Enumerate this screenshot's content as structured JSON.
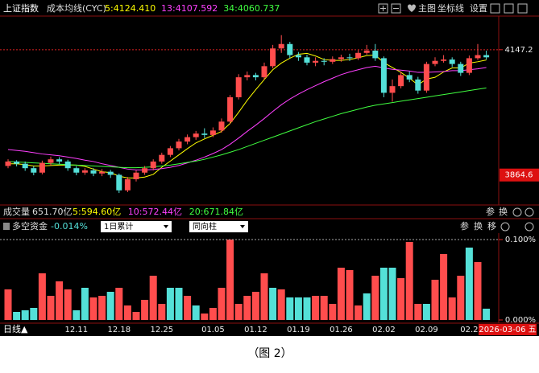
{
  "toolbar": {
    "symbol": "上证指数",
    "indicator": "成本均线(CYC)",
    "buttons": [
      "主图",
      "坐标线",
      "设置"
    ]
  },
  "volume": {
    "title": "成交量",
    "value": "651.70亿",
    "legend": [
      {
        "text": "5:594.60亿",
        "color": "#ffff00"
      },
      {
        "text": "10:572.44亿",
        "color": "#ff40ff"
      },
      {
        "text": "20:671.84亿",
        "color": "#40ff40"
      }
    ]
  },
  "panel_buttons": [
    "参",
    "换",
    "移"
  ],
  "controls": {
    "period": "1日累计",
    "style": "同向柱"
  },
  "footer": {
    "period": "日线▲",
    "date": "2026-03-06 五"
  },
  "caption": "（图 2）",
  "chart_data": [
    {
      "type": "candlestick",
      "up_color": "#ff4d4d",
      "down_color": "#54e0d8",
      "ylim": [
        3797,
        4223
      ],
      "yticks": [
        4147.2,
        3864.6
      ],
      "open": [
        3885,
        3895,
        3890,
        3880,
        3870,
        3892,
        3900,
        3895,
        3880,
        3870,
        3875,
        3868,
        3872,
        3865,
        3830,
        3855,
        3870,
        3880,
        3895,
        3910,
        3925,
        3940,
        3950,
        3958,
        3955,
        3965,
        3985,
        4040,
        4085,
        4090,
        4085,
        4110,
        4150,
        4160,
        4135,
        4130,
        4118,
        4122,
        4120,
        4126,
        4130,
        4128,
        4140,
        4145,
        4128,
        4050,
        4065,
        4090,
        4080,
        4055,
        4115,
        4122,
        4125,
        4115,
        4095,
        4128,
        4135
      ],
      "high": [
        3900,
        3898,
        3895,
        3885,
        3897,
        3906,
        3905,
        3899,
        3885,
        3880,
        3880,
        3878,
        3876,
        3868,
        3860,
        3875,
        3885,
        3900,
        3915,
        3930,
        3946,
        3956,
        3964,
        3970,
        3972,
        3992,
        4045,
        4092,
        4098,
        4095,
        4118,
        4158,
        4180,
        4165,
        4142,
        4136,
        4130,
        4128,
        4132,
        4136,
        4138,
        4146,
        4158,
        4160,
        4132,
        4080,
        4098,
        4098,
        4086,
        4120,
        4130,
        4135,
        4130,
        4120,
        4134,
        4160,
        4145
      ],
      "low": [
        3880,
        3884,
        3874,
        3864,
        3866,
        3886,
        3889,
        3874,
        3864,
        3865,
        3862,
        3862,
        3858,
        3824,
        3826,
        3850,
        3865,
        3875,
        3890,
        3905,
        3920,
        3934,
        3944,
        3948,
        3950,
        3960,
        3980,
        4035,
        4078,
        4078,
        4080,
        4105,
        4140,
        4128,
        4122,
        4112,
        4110,
        4112,
        4115,
        4120,
        4122,
        4124,
        4136,
        4122,
        4040,
        4030,
        4060,
        4074,
        4048,
        4050,
        4110,
        4118,
        4108,
        4088,
        4090,
        4124,
        4125
      ],
      "close": [
        3895,
        3890,
        3880,
        3870,
        3892,
        3900,
        3895,
        3880,
        3870,
        3875,
        3868,
        3872,
        3865,
        3830,
        3855,
        3870,
        3880,
        3895,
        3910,
        3925,
        3940,
        3950,
        3958,
        3955,
        3965,
        3985,
        4040,
        4085,
        4090,
        4085,
        4110,
        4150,
        4160,
        4135,
        4130,
        4118,
        4122,
        4120,
        4126,
        4130,
        4128,
        4140,
        4145,
        4128,
        4050,
        4065,
        4090,
        4080,
        4055,
        4115,
        4122,
        4125,
        4115,
        4095,
        4128,
        4135,
        4130
      ],
      "series": [
        {
          "name": "5:4124.410",
          "color": "#ffff00",
          "values": [
            3890,
            3890,
            3888,
            3885,
            3885,
            3886,
            3887,
            3887,
            3887,
            3884,
            3878,
            3872,
            3870,
            3862,
            3858,
            3858,
            3860,
            3866,
            3882,
            3896,
            3910,
            3924,
            3937,
            3946,
            3954,
            3963,
            3981,
            4006,
            4033,
            4057,
            4080,
            4102,
            4117,
            4128,
            4137,
            4139,
            4133,
            4125,
            4123,
            4123,
            4125,
            4129,
            4134,
            4135,
            4118,
            4107,
            4096,
            4083,
            4068,
            4081,
            4085,
            4097,
            4106,
            4106,
            4117,
            4120,
            4124
          ]
        },
        {
          "name": "13:4107.592",
          "color": "#ff40ff",
          "values": [
            3922,
            3920,
            3918,
            3915,
            3912,
            3910,
            3908,
            3905,
            3902,
            3898,
            3895,
            3890,
            3886,
            3882,
            3878,
            3876,
            3876,
            3877,
            3879,
            3882,
            3886,
            3892,
            3898,
            3905,
            3913,
            3922,
            3934,
            3948,
            3963,
            3977,
            3992,
            4008,
            4023,
            4036,
            4047,
            4057,
            4066,
            4075,
            4083,
            4091,
            4097,
            4102,
            4107,
            4110,
            4106,
            4103,
            4101,
            4099,
            4096,
            4096,
            4097,
            4098,
            4100,
            4100,
            4102,
            4104,
            4107
          ]
        },
        {
          "name": "34:4060.737",
          "color": "#40ff40",
          "values": [
            3895,
            3894,
            3893,
            3892,
            3891,
            3890,
            3889,
            3888,
            3887,
            3886,
            3885,
            3884,
            3883,
            3882,
            3881,
            3881,
            3882,
            3883,
            3885,
            3887,
            3890,
            3893,
            3896,
            3900,
            3905,
            3910,
            3916,
            3922,
            3929,
            3936,
            3943,
            3950,
            3957,
            3964,
            3971,
            3978,
            3985,
            3991,
            3997,
            4003,
            4008,
            4013,
            4018,
            4022,
            4025,
            4028,
            4031,
            4034,
            4037,
            4040,
            4043,
            4046,
            4049,
            4052,
            4055,
            4058,
            4061
          ]
        }
      ]
    },
    {
      "type": "bar",
      "title": "多空资金",
      "subtitle": "-0.014%",
      "categories": [
        null,
        null,
        null,
        null,
        null,
        null,
        null,
        null,
        "12.11",
        null,
        null,
        null,
        null,
        "12.18",
        null,
        null,
        null,
        null,
        "12.25",
        null,
        null,
        null,
        null,
        null,
        "01.05",
        null,
        null,
        null,
        null,
        "01.12",
        null,
        null,
        null,
        null,
        "01.19",
        null,
        null,
        null,
        null,
        "01.26",
        null,
        null,
        null,
        null,
        "02.02",
        null,
        null,
        null,
        null,
        "02.09",
        null,
        null,
        null,
        null,
        "02.2",
        null,
        null
      ],
      "values": [
        0.038,
        0.01,
        0.012,
        0.015,
        0.058,
        0.03,
        0.048,
        0.038,
        0.012,
        0.04,
        0.028,
        0.03,
        0.035,
        0.04,
        0.018,
        0.01,
        0.025,
        0.055,
        0.02,
        0.04,
        0.04,
        0.03,
        0.018,
        0.008,
        0.015,
        0.04,
        0.1,
        0.02,
        0.03,
        0.035,
        0.058,
        0.04,
        0.038,
        0.028,
        0.028,
        0.028,
        0.03,
        0.03,
        0.02,
        0.065,
        0.062,
        0.018,
        0.033,
        0.055,
        0.065,
        0.065,
        0.052,
        0.097,
        0.02,
        0.02,
        0.05,
        0.082,
        0.028,
        0.055,
        0.09,
        0.072,
        0.014
      ],
      "colors": [
        "#ff4d4d",
        "#54e0d8",
        "#54e0d8",
        "#54e0d8",
        "#ff4d4d",
        "#ff4d4d",
        "#ff4d4d",
        "#ff4d4d",
        "#54e0d8",
        "#54e0d8",
        "#ff4d4d",
        "#ff4d4d",
        "#54e0d8",
        "#ff4d4d",
        "#ff4d4d",
        "#ff4d4d",
        "#ff4d4d",
        "#ff4d4d",
        "#ff4d4d",
        "#54e0d8",
        "#54e0d8",
        "#ff4d4d",
        "#54e0d8",
        "#ff4d4d",
        "#ff4d4d",
        "#ff4d4d",
        "#ff4d4d",
        "#ff4d4d",
        "#ff4d4d",
        "#ff4d4d",
        "#ff4d4d",
        "#54e0d8",
        "#ff4d4d",
        "#54e0d8",
        "#54e0d8",
        "#54e0d8",
        "#ff4d4d",
        "#ff4d4d",
        "#ff4d4d",
        "#ff4d4d",
        "#ff4d4d",
        "#ff4d4d",
        "#54e0d8",
        "#ff4d4d",
        "#54e0d8",
        "#54e0d8",
        "#ff4d4d",
        "#ff4d4d",
        "#ff4d4d",
        "#54e0d8",
        "#ff4d4d",
        "#ff4d4d",
        "#ff4d4d",
        "#ff4d4d",
        "#54e0d8",
        "#ff4d4d",
        "#54e0d8"
      ],
      "ylim": [
        0,
        0.1
      ],
      "yticks": [
        {
          "value": 0.1,
          "label": "0.100%"
        },
        {
          "value": 0,
          "label": "0.000%"
        }
      ]
    }
  ]
}
